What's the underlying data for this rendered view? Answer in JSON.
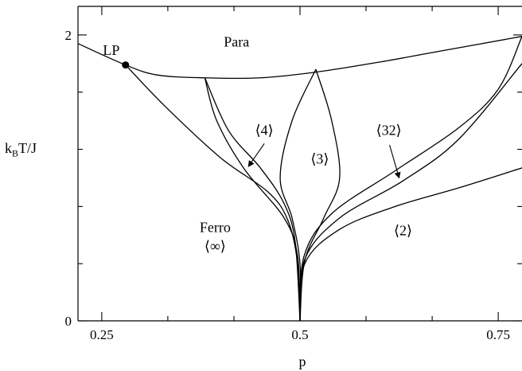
{
  "chart_data": {
    "type": "line",
    "title": "",
    "xlabel": "p",
    "ylabel": "k_B T/J",
    "ylabel_parts": {
      "k": "k",
      "sub": "B",
      "rest": "T/J"
    },
    "xlim": [
      0.22,
      0.78
    ],
    "ylim": [
      0,
      2.2
    ],
    "xticks": [
      {
        "value": 0.25,
        "label": "0.25"
      },
      {
        "value": 0.5,
        "label": "0.5"
      },
      {
        "value": 0.75,
        "label": "0.75"
      }
    ],
    "xticks_minor": [
      0.3333,
      0.4167,
      0.5833,
      0.6667
    ],
    "yticks": [
      {
        "value": 0,
        "label": "0"
      },
      {
        "value": 2,
        "label": "2"
      }
    ],
    "yticks_minor": [
      0.4,
      0.8,
      1.2,
      1.6
    ],
    "grid": false,
    "series": [
      {
        "values": [
          [
            0.22,
            1.94
          ],
          [
            0.28,
            1.79
          ],
          [
            0.32,
            1.72
          ],
          [
            0.38,
            1.7
          ],
          [
            0.45,
            1.7
          ],
          [
            0.52,
            1.74
          ],
          [
            0.6,
            1.81
          ],
          [
            0.68,
            1.89
          ],
          [
            0.78,
            1.99
          ]
        ]
      },
      {
        "values": [
          [
            0.28,
            1.79
          ],
          [
            0.33,
            1.5
          ],
          [
            0.4,
            1.14
          ],
          [
            0.46,
            0.9
          ],
          [
            0.485,
            0.7
          ],
          [
            0.497,
            0.4
          ],
          [
            0.5,
            0
          ]
        ]
      },
      {
        "values": [
          [
            0.38,
            1.7
          ],
          [
            0.41,
            1.33
          ],
          [
            0.45,
            1.07
          ],
          [
            0.48,
            0.82
          ],
          [
            0.494,
            0.55
          ],
          [
            0.5,
            0
          ]
        ]
      },
      {
        "values": [
          [
            0.38,
            1.7
          ],
          [
            0.395,
            1.4
          ],
          [
            0.43,
            1.06
          ],
          [
            0.48,
            0.72
          ],
          [
            0.497,
            0.45
          ],
          [
            0.5,
            0
          ]
        ]
      },
      {
        "values": [
          [
            0.52,
            1.76
          ],
          [
            0.49,
            1.4
          ],
          [
            0.475,
            1.0
          ],
          [
            0.49,
            0.72
          ],
          [
            0.5,
            0.4
          ],
          [
            0.5,
            0
          ]
        ]
      },
      {
        "values": [
          [
            0.52,
            1.76
          ],
          [
            0.54,
            1.4
          ],
          [
            0.55,
            1.0
          ],
          [
            0.53,
            0.72
          ],
          [
            0.506,
            0.42
          ],
          [
            0.5,
            0
          ]
        ]
      },
      {
        "values": [
          [
            0.5,
            0
          ],
          [
            0.505,
            0.45
          ],
          [
            0.54,
            0.75
          ],
          [
            0.62,
            1.05
          ],
          [
            0.7,
            1.35
          ],
          [
            0.75,
            1.62
          ],
          [
            0.78,
            1.99
          ]
        ]
      },
      {
        "values": [
          [
            0.5,
            0
          ],
          [
            0.506,
            0.43
          ],
          [
            0.55,
            0.72
          ],
          [
            0.63,
            0.98
          ],
          [
            0.7,
            1.27
          ],
          [
            0.78,
            1.8
          ]
        ]
      },
      {
        "values": [
          [
            0.5,
            0
          ],
          [
            0.506,
            0.4
          ],
          [
            0.55,
            0.64
          ],
          [
            0.62,
            0.8
          ],
          [
            0.7,
            0.93
          ],
          [
            0.78,
            1.07
          ]
        ]
      }
    ],
    "points": [
      {
        "name": "LP",
        "x": 0.28,
        "y": 1.79
      }
    ],
    "annotations": [
      {
        "text": "Para",
        "x": 0.42,
        "y": 1.92
      },
      {
        "text": "LP",
        "x": 0.262,
        "y": 1.86
      },
      {
        "text": "⟨4⟩",
        "x": 0.455,
        "y": 1.3
      },
      {
        "text": "⟨3⟩",
        "x": 0.525,
        "y": 1.1
      },
      {
        "text": "⟨32⟩",
        "x": 0.612,
        "y": 1.3
      },
      {
        "text": "Ferro",
        "x": 0.393,
        "y": 0.62
      },
      {
        "text": "⟨∞⟩",
        "x": 0.393,
        "y": 0.49
      },
      {
        "text": "⟨2⟩",
        "x": 0.63,
        "y": 0.6
      }
    ],
    "arrows": [
      {
        "from": [
          0.455,
          1.24
        ],
        "to": [
          0.435,
          1.08
        ]
      },
      {
        "from": [
          0.613,
          1.23
        ],
        "to": [
          0.625,
          1.0
        ]
      }
    ]
  }
}
